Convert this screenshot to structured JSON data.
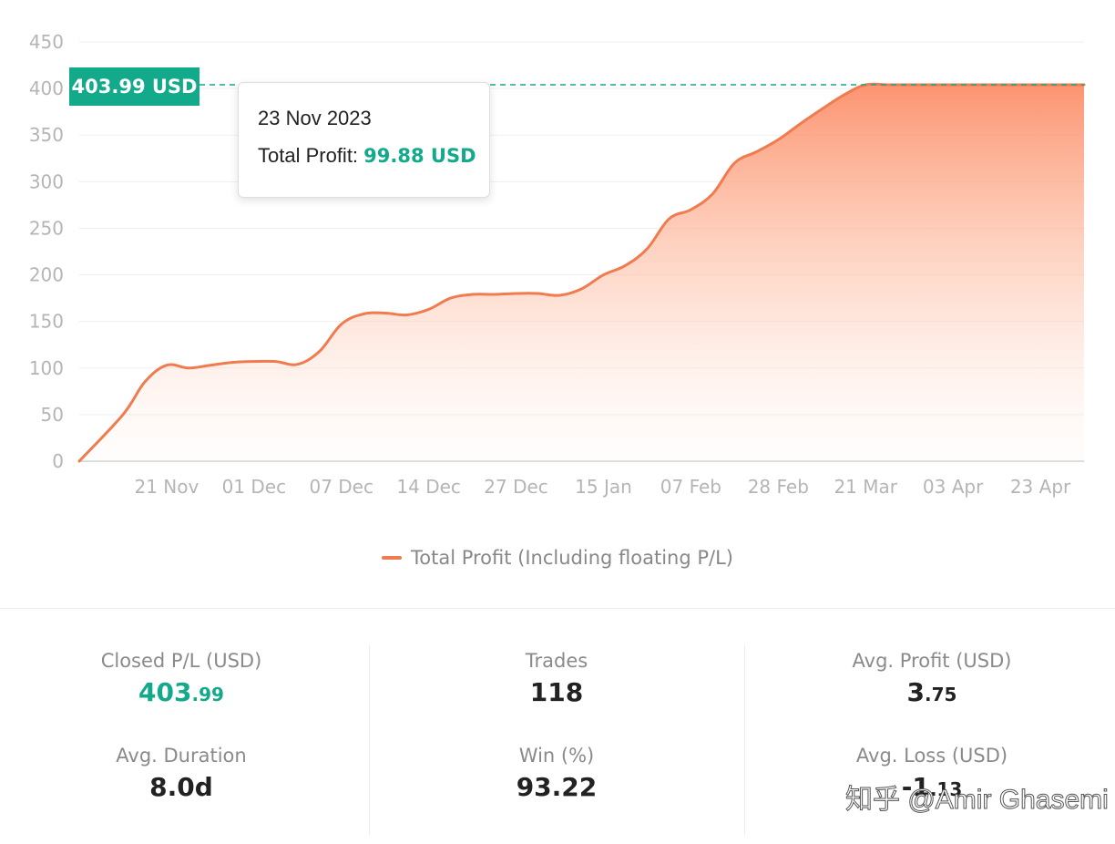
{
  "chart_data": {
    "type": "area",
    "title": "",
    "xlabel": "",
    "ylabel": "",
    "ylim": [
      0,
      450
    ],
    "yticks": [
      0,
      50,
      100,
      150,
      200,
      250,
      300,
      350,
      400,
      450
    ],
    "x_tick_labels": [
      "21 Nov",
      "01 Dec",
      "07 Dec",
      "14 Dec",
      "27 Dec",
      "15 Jan",
      "07 Feb",
      "28 Feb",
      "21 Mar",
      "03 Apr",
      "23 Apr"
    ],
    "grid": true,
    "legend_position": "bottom",
    "series": [
      {
        "name": "Total Profit (Including floating P/L)",
        "color": "#f07b4e",
        "x": [
          0,
          0.5,
          0.75,
          1,
          1.25,
          1.5,
          1.75,
          2,
          2.25,
          2.5,
          2.75,
          3,
          3.25,
          3.5,
          3.75,
          4,
          4.25,
          4.5,
          4.75,
          5,
          5.25,
          5.5,
          5.75,
          6,
          6.25,
          6.5,
          6.75,
          7,
          7.25,
          7.5,
          7.75,
          8,
          8.25,
          8.5,
          8.75,
          9,
          9.25,
          9.5,
          9.75,
          10,
          10.5,
          11.5
        ],
        "values": [
          0,
          50,
          85,
          103,
          100,
          103,
          106,
          107,
          107,
          104,
          118,
          147,
          158,
          159,
          157,
          163,
          175,
          179,
          179,
          180,
          180,
          178,
          185,
          200,
          210,
          228,
          260,
          270,
          287,
          320,
          332,
          345,
          362,
          378,
          393,
          404,
          404,
          404,
          404,
          404,
          404,
          404
        ]
      }
    ],
    "marker_line": {
      "value": 403.99,
      "label": "403.99 USD"
    },
    "tooltip": {
      "date": "23 Nov 2023",
      "label": "Total Profit:",
      "value": "99.88 USD"
    }
  },
  "stats": {
    "closed_pl": {
      "label": "Closed P/L (USD)",
      "int": "403",
      "dec": ".99"
    },
    "avg_duration": {
      "label": "Avg. Duration",
      "value": "8.0d"
    },
    "trades": {
      "label": "Trades",
      "value": "118"
    },
    "win_pct": {
      "label": "Win (%)",
      "value": "93.22"
    },
    "avg_profit": {
      "label": "Avg. Profit (USD)",
      "int": "3",
      "dec": ".75"
    },
    "avg_loss": {
      "label": "Avg. Loss (USD)",
      "int": "-1",
      "dec": ".13"
    }
  },
  "watermark": "知乎 @Amir Ghasemi",
  "colors": {
    "accent": "#13a98b",
    "line": "#f07b4e",
    "fill": "#fc8e68"
  }
}
